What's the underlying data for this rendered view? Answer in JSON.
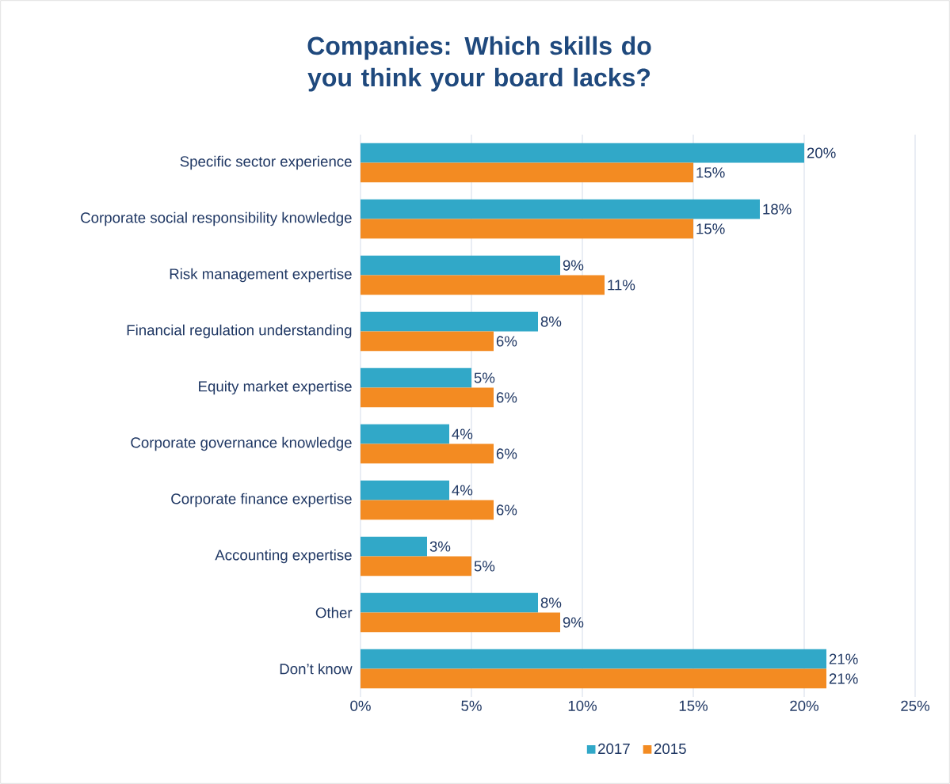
{
  "chart_data": {
    "type": "bar",
    "orientation": "horizontal",
    "title": "Companies: Which skills do you think your board lacks?",
    "categories": [
      "Specific sector experience",
      "Corporate social responsibility knowledge",
      "Risk management expertise",
      "Financial regulation understanding",
      "Equity market expertise",
      "Corporate governance knowledge",
      "Corporate finance expertise",
      "Accounting expertise",
      "Other",
      "Don’t know"
    ],
    "series": [
      {
        "name": "2017",
        "color": "#31a8c8",
        "values": [
          20,
          18,
          9,
          8,
          5,
          4,
          4,
          3,
          8,
          21
        ],
        "value_labels": [
          "20%",
          "18%",
          "9%",
          "8%",
          "5%",
          "4%",
          "4%",
          "3%",
          "8%",
          "21%"
        ]
      },
      {
        "name": "2015",
        "color": "#f38b22",
        "values": [
          15,
          15,
          11,
          6,
          6,
          6,
          6,
          5,
          9,
          21
        ],
        "value_labels": [
          "15%",
          "15%",
          "11%",
          "6%",
          "6%",
          "6%",
          "6%",
          "5%",
          "9%",
          "21%"
        ]
      }
    ],
    "xlim": [
      0,
      25
    ],
    "xticks": [
      {
        "value": 0,
        "label": "0%"
      },
      {
        "value": 5,
        "label": "5%"
      },
      {
        "value": 10,
        "label": "10%"
      },
      {
        "value": 15,
        "label": "15%"
      },
      {
        "value": 20,
        "label": "20%"
      },
      {
        "value": 25,
        "label": "25%"
      }
    ],
    "grid": "x",
    "legend": "bottom"
  }
}
